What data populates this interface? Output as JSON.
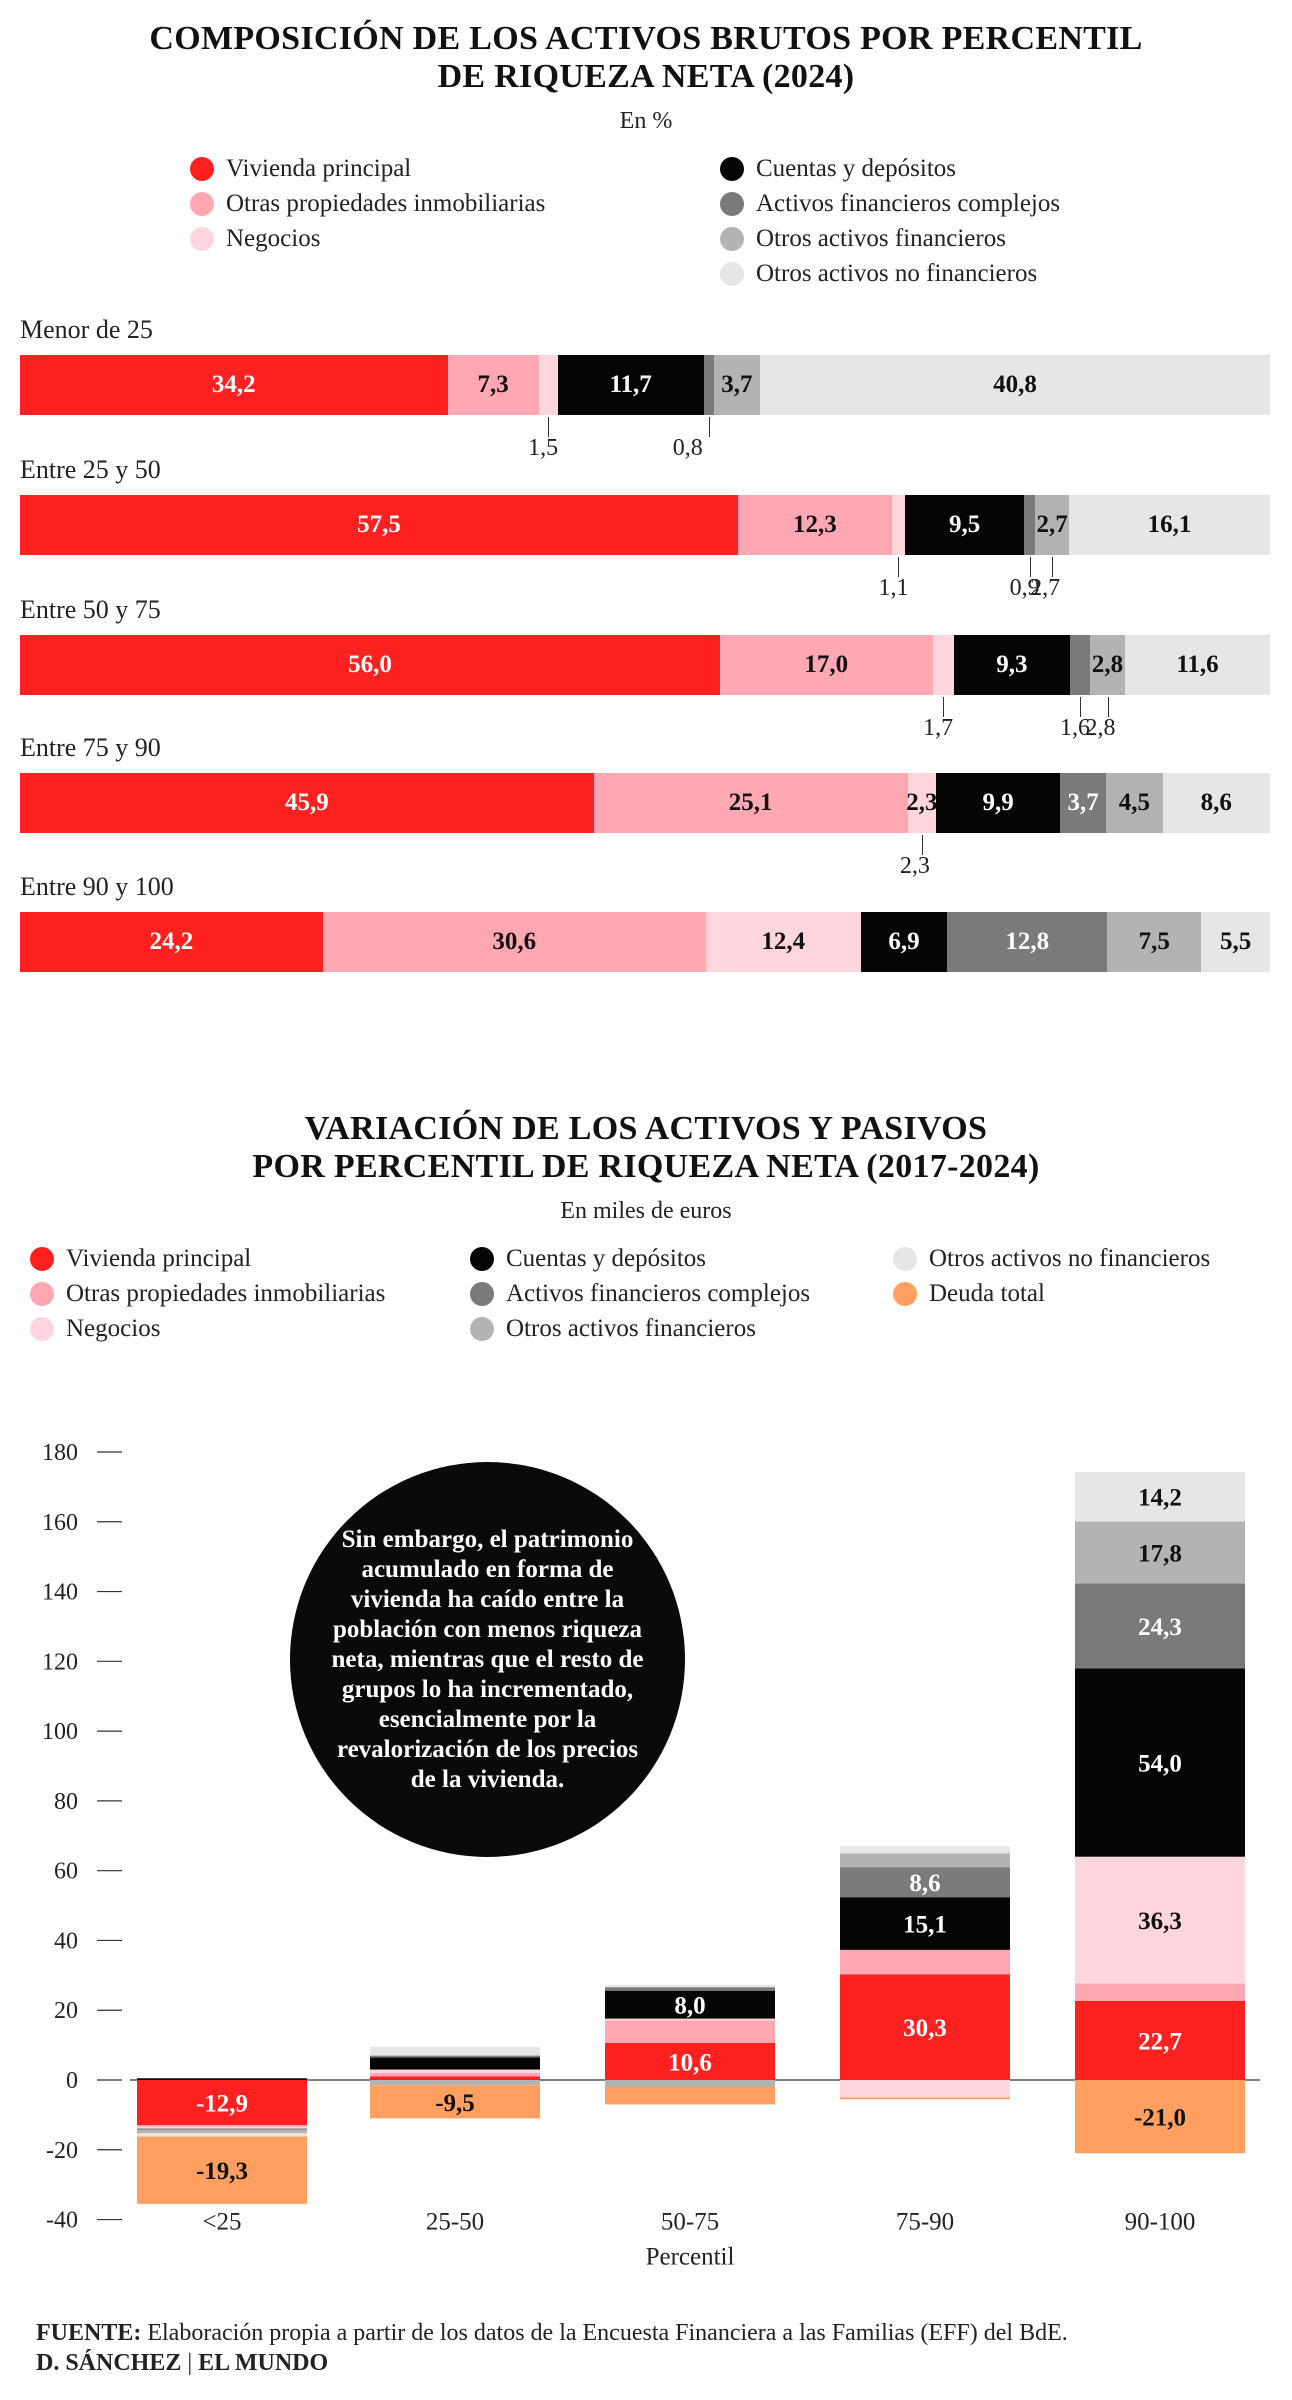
{
  "chart1": {
    "title_line1": "COMPOSICIÓN DE LOS ACTIVOS BRUTOS POR PERCENTIL",
    "title_line2": "DE RIQUEZA NETA (2024)",
    "subtitle": "En %",
    "legend": [
      {
        "label": "Vivienda principal",
        "color": "#ff2020"
      },
      {
        "label": "Otras propiedades inmobiliarias",
        "color": "#ffa8b4"
      },
      {
        "label": "Negocios",
        "color": "#ffd6de"
      },
      {
        "label": "Cuentas y depósitos",
        "color": "#050505"
      },
      {
        "label": "Activos financieros complejos",
        "color": "#7a7a7a"
      },
      {
        "label": "Otros activos financieros",
        "color": "#b3b3b3"
      },
      {
        "label": "Otros activos no financieros",
        "color": "#e6e6e6"
      }
    ]
  },
  "chart2": {
    "title_line1": "VARIACIÓN DE LOS ACTIVOS Y PASIVOS",
    "title_line2": "POR PERCENTIL DE RIQUEZA NETA (2017-2024)",
    "subtitle": "En miles de euros",
    "legend": [
      {
        "label": "Vivienda principal",
        "color": "#ff2020"
      },
      {
        "label": "Otras propiedades inmobiliarias",
        "color": "#ffa8b4"
      },
      {
        "label": "Negocios",
        "color": "#ffd6de"
      },
      {
        "label": "Cuentas y depósitos",
        "color": "#050505"
      },
      {
        "label": "Activos financieros complejos",
        "color": "#7a7a7a"
      },
      {
        "label": "Otros activos financieros",
        "color": "#b3b3b3"
      },
      {
        "label": "Otros activos no financieros",
        "color": "#e6e6e6"
      },
      {
        "label": "Deuda total",
        "color": "#ffa060"
      }
    ],
    "annotation": "Sin embargo, el patrimonio acumulado en forma de vivienda ha caído entre la población con menos riqueza neta, mientras que el resto de grupos lo ha incrementado, esencialmente por la revalorización de los precios de la vivienda."
  },
  "chart_data": [
    {
      "type": "bar",
      "orientation": "horizontal-stacked",
      "unit": "%",
      "categories": [
        "Menor de 25",
        "Entre 25 y 50",
        "Entre 50 y 75",
        "Entre 75 y 90",
        "Entre 90 y 100"
      ],
      "series": [
        {
          "name": "Vivienda principal",
          "values": [
            34.2,
            57.5,
            56.0,
            45.9,
            24.2
          ],
          "labels": [
            "34,2",
            "57,5",
            "56,0",
            "45,9",
            "24,2"
          ]
        },
        {
          "name": "Otras propiedades inmobiliarias",
          "values": [
            7.3,
            12.3,
            17.0,
            25.1,
            30.6
          ],
          "labels": [
            "7,3",
            "12,3",
            "17,0",
            "25,1",
            "30,6"
          ]
        },
        {
          "name": "Negocios",
          "values": [
            1.5,
            1.1,
            1.7,
            2.3,
            12.4
          ],
          "labels": [
            "1,5",
            "1,1",
            "1,7",
            "2,3",
            "12,4"
          ]
        },
        {
          "name": "Cuentas y depósitos",
          "values": [
            11.7,
            9.5,
            9.3,
            9.9,
            6.9
          ],
          "labels": [
            "11,7",
            "9,5",
            "9,3",
            "9,9",
            "6,9"
          ]
        },
        {
          "name": "Activos financieros complejos",
          "values": [
            0.8,
            0.9,
            1.6,
            3.7,
            12.8
          ],
          "labels": [
            "0,8",
            "0,9",
            "1,6",
            "3,7",
            "12,8"
          ]
        },
        {
          "name": "Otros activos financieros",
          "values": [
            3.7,
            2.7,
            2.8,
            4.5,
            7.5
          ],
          "labels": [
            "3,7",
            "2,7",
            "2,8",
            "4,5",
            "7,5"
          ]
        },
        {
          "name": "Otros activos no financieros",
          "values": [
            40.8,
            16.1,
            11.6,
            8.6,
            5.5
          ],
          "labels": [
            "40,8",
            "16,1",
            "11,6",
            "8,6",
            "5,5"
          ]
        }
      ]
    },
    {
      "type": "bar",
      "orientation": "vertical-stacked",
      "unit": "miles de euros",
      "categories": [
        "<25",
        "25-50",
        "50-75",
        "75-90",
        "90-100"
      ],
      "xlabel": "Percentil",
      "ylim": [
        -40,
        180
      ],
      "yticks": [
        -40,
        -20,
        0,
        20,
        40,
        60,
        80,
        100,
        120,
        140,
        160,
        180
      ],
      "series": [
        {
          "name": "Vivienda principal",
          "values": [
            -12.9,
            1.0,
            10.6,
            30.3,
            22.7
          ],
          "labels": [
            "-12,9",
            "",
            "10,6",
            "30,3",
            "22,7"
          ]
        },
        {
          "name": "Otras propiedades inmobiliarias",
          "values": [
            -0.5,
            1.0,
            6.5,
            7.0,
            5.0
          ],
          "labels": [
            "",
            "",
            "",
            "",
            ""
          ]
        },
        {
          "name": "Negocios",
          "values": [
            -0.5,
            1.0,
            0.5,
            -5.0,
            36.3
          ],
          "labels": [
            "",
            "",
            "",
            "",
            "36,3"
          ]
        },
        {
          "name": "Cuentas y depósitos",
          "values": [
            0.5,
            3.5,
            8.0,
            15.1,
            54.0
          ],
          "labels": [
            "",
            "",
            "8,0",
            "15,1",
            "54,0"
          ]
        },
        {
          "name": "Activos financieros complejos",
          "values": [
            -0.3,
            0.5,
            1.0,
            8.6,
            24.3
          ],
          "labels": [
            "",
            "",
            "",
            "8,6",
            "24,3"
          ]
        },
        {
          "name": "Otros activos financieros",
          "values": [
            -1.0,
            -1.5,
            -2.0,
            4.0,
            17.8
          ],
          "labels": [
            "",
            "",
            "",
            "",
            "17,8"
          ]
        },
        {
          "name": "Otros activos no financieros",
          "values": [
            -1.0,
            2.5,
            0.7,
            2.0,
            14.2
          ],
          "labels": [
            "",
            "",
            "",
            "",
            "14,2"
          ]
        },
        {
          "name": "Deuda total",
          "values": [
            -19.3,
            -9.5,
            -5.0,
            -0.5,
            -21.0
          ],
          "labels": [
            "-19,3",
            "-9,5",
            "",
            "",
            "-21,0"
          ]
        }
      ]
    }
  ],
  "footer": {
    "source_label": "FUENTE:",
    "source_text": "Elaboración propia a partir de los datos de la Encuesta Financiera a las Familias (EFF) del BdE.",
    "credit": "D. SÁNCHEZ",
    "separator": "|",
    "outlet": "EL MUNDO"
  }
}
